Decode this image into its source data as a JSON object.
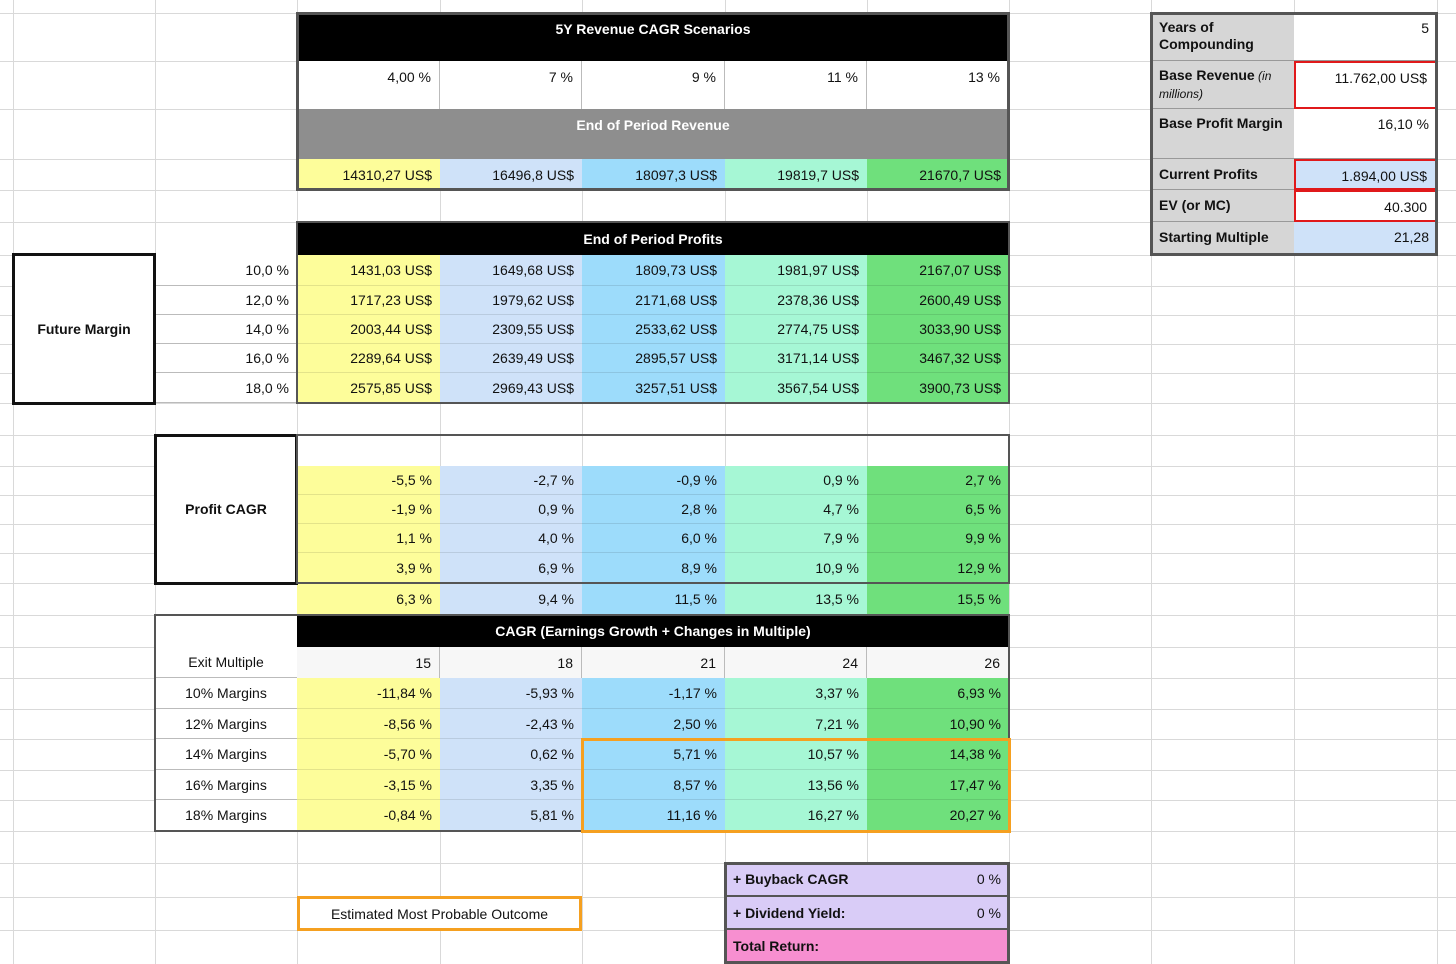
{
  "scenarios": {
    "title": "5Y Revenue CAGR Scenarios",
    "growth_rates": [
      "4,00 %",
      "7 %",
      "9 %",
      "11 %",
      "13 %"
    ]
  },
  "revenue": {
    "title": "End of Period Revenue",
    "values": [
      "14310,27 US$",
      "16496,8 US$",
      "18097,3 US$",
      "19819,7 US$",
      "21670,7 US$"
    ]
  },
  "profits": {
    "title": "End of Period Profits",
    "row_label": "Future Margin",
    "margins": [
      "10,0 %",
      "12,0 %",
      "14,0 %",
      "16,0 %",
      "18,0 %"
    ],
    "rows": [
      [
        "1431,03 US$",
        "1649,68 US$",
        "1809,73 US$",
        "1981,97 US$",
        "2167,07 US$"
      ],
      [
        "1717,23 US$",
        "1979,62 US$",
        "2171,68 US$",
        "2378,36 US$",
        "2600,49 US$"
      ],
      [
        "2003,44 US$",
        "2309,55 US$",
        "2533,62 US$",
        "2774,75 US$",
        "3033,90 US$"
      ],
      [
        "2289,64 US$",
        "2639,49 US$",
        "2895,57 US$",
        "3171,14 US$",
        "3467,32 US$"
      ],
      [
        "2575,85 US$",
        "2969,43 US$",
        "3257,51 US$",
        "3567,54 US$",
        "3900,73 US$"
      ]
    ]
  },
  "profit_cagr": {
    "label": "Profit CAGR",
    "rows": [
      [
        "-5,5 %",
        "-2,7 %",
        "-0,9 %",
        "0,9 %",
        "2,7 %"
      ],
      [
        "-1,9 %",
        "0,9 %",
        "2,8 %",
        "4,7 %",
        "6,5 %"
      ],
      [
        "1,1 %",
        "4,0 %",
        "6,0 %",
        "7,9 %",
        "9,9 %"
      ],
      [
        "3,9 %",
        "6,9 %",
        "8,9 %",
        "10,9 %",
        "12,9 %"
      ],
      [
        "6,3 %",
        "9,4 %",
        "11,5 %",
        "13,5 %",
        "15,5 %"
      ]
    ]
  },
  "cagr": {
    "title": "CAGR (Earnings Growth + Changes in Multiple)",
    "header_label": "Exit Multiple",
    "exit_multiples": [
      "15",
      "18",
      "21",
      "24",
      "26"
    ],
    "row_labels": [
      "10% Margins",
      "12% Margins",
      "14% Margins",
      "16% Margins",
      "18% Margins"
    ],
    "rows": [
      [
        "-11,84 %",
        "-5,93 %",
        "-1,17 %",
        "3,37 %",
        "6,93 %"
      ],
      [
        "-8,56 %",
        "-2,43 %",
        "2,50 %",
        "7,21 %",
        "10,90 %"
      ],
      [
        "-5,70 %",
        "0,62 %",
        "5,71 %",
        "10,57 %",
        "14,38 %"
      ],
      [
        "-3,15 %",
        "3,35 %",
        "8,57 %",
        "13,56 %",
        "17,47 %"
      ],
      [
        "-0,84 %",
        "5,81 %",
        "11,16 %",
        "16,27 %",
        "20,27 %"
      ]
    ]
  },
  "legend": "Estimated Most Probable Outcome",
  "returns": [
    {
      "label": "+ Buyback CAGR",
      "value": "0 %"
    },
    {
      "label": "+ Dividend Yield:",
      "value": "0 %"
    },
    {
      "label": "Total Return:"
    }
  ],
  "inputs": [
    {
      "label": "Years of Compounding",
      "value": "5"
    },
    {
      "label": "Base Revenue",
      "note": "(in millions)",
      "value": "11.762,00 US$"
    },
    {
      "label": "Base Profit Margin",
      "value": "16,10 %"
    },
    {
      "label": "Current Profits",
      "value": "1.894,00 US$"
    },
    {
      "label": "EV (or MC)",
      "value": "40.300"
    },
    {
      "label": "Starting Multiple",
      "value": "21,28"
    }
  ]
}
